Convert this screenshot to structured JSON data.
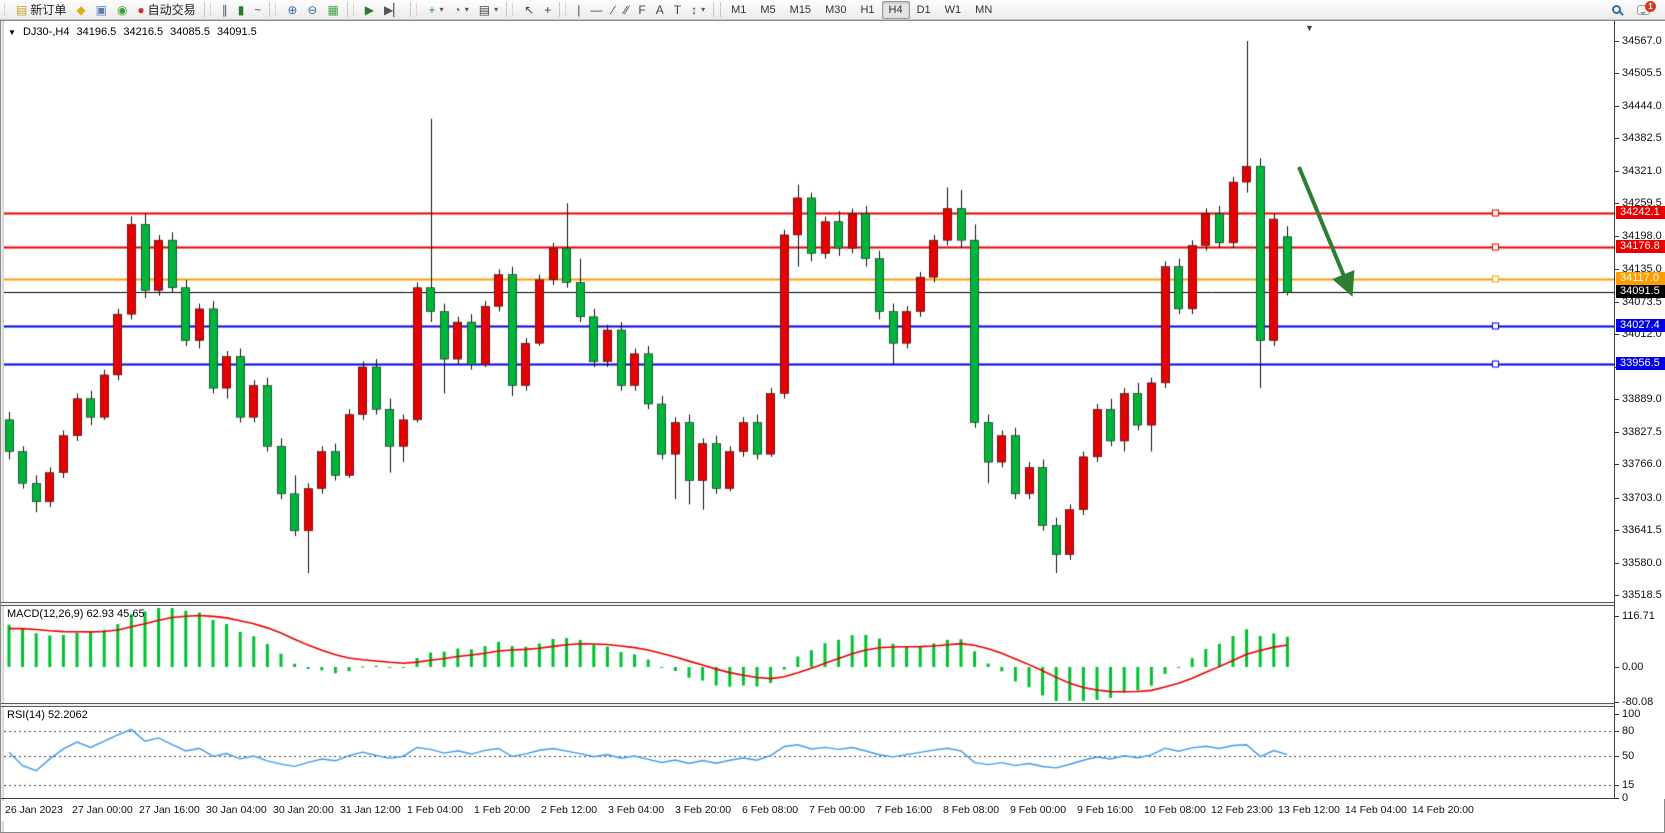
{
  "icons": {
    "new-order": "▤",
    "new-chart": "◆",
    "profiles": "▣",
    "signals": "◉",
    "auto-trading": "●",
    "bar-chart": "∥",
    "candlestick-chart": "▮",
    "line-chart": "~",
    "zoom-in": "⊕",
    "zoom-out": "⊖",
    "tile-windows": "▦",
    "auto-scroll": "▶",
    "chart-shift": "▶▏",
    "indicators": "+",
    "periods": "◔",
    "templates": "▤",
    "cursor": "↖",
    "crosshair": "+",
    "vertical-line": "|",
    "horizontal-line": "—",
    "trendline": "∕",
    "equidistant-channel": "∕∕",
    "fibonacci": "F",
    "text": "A",
    "text-label": "T",
    "arrows": "↕",
    "dropdown": "▾",
    "chart_caret": "▼",
    "shift_marker": "▼"
  },
  "toolbar": {
    "new_order_label": "新订单",
    "auto_trading_label": "自动交易",
    "notification_count": "1",
    "groups": [
      {
        "items": [
          {
            "name": "new-order",
            "icon": "new-order",
            "label": "新订单"
          },
          {
            "name": "new-chart",
            "icon": "new-chart"
          },
          {
            "name": "profiles",
            "icon": "profiles"
          },
          {
            "name": "signals",
            "icon": "signals"
          },
          {
            "name": "auto-trading",
            "icon": "auto-trading",
            "label": "自动交易"
          }
        ]
      },
      {
        "items": [
          {
            "name": "bar-chart",
            "icon": "bar-chart"
          },
          {
            "name": "candlestick-chart",
            "icon": "candlestick-chart"
          },
          {
            "name": "line-chart",
            "icon": "line-chart"
          }
        ]
      },
      {
        "items": [
          {
            "name": "zoom-in",
            "icon": "zoom-in"
          },
          {
            "name": "zoom-out",
            "icon": "zoom-out"
          },
          {
            "name": "tile-windows",
            "icon": "tile-windows"
          }
        ]
      },
      {
        "items": [
          {
            "name": "auto-scroll",
            "icon": "auto-scroll"
          },
          {
            "name": "chart-shift",
            "icon": "chart-shift"
          }
        ]
      },
      {
        "items": [
          {
            "name": "indicators",
            "icon": "indicators",
            "dropdown": true
          },
          {
            "name": "periods",
            "icon": "periods",
            "dropdown": true
          },
          {
            "name": "templates",
            "icon": "templates",
            "dropdown": true
          }
        ]
      },
      {
        "items": [
          {
            "name": "cursor",
            "icon": "cursor"
          },
          {
            "name": "crosshair",
            "icon": "crosshair"
          }
        ]
      },
      {
        "items": [
          {
            "name": "vertical-line",
            "icon": "vertical-line"
          },
          {
            "name": "horizontal-line",
            "icon": "horizontal-line"
          },
          {
            "name": "trendline",
            "icon": "trendline"
          },
          {
            "name": "equidistant-channel",
            "icon": "equidistant-channel"
          },
          {
            "name": "fibonacci",
            "icon": "fibonacci"
          },
          {
            "name": "text",
            "icon": "text"
          },
          {
            "name": "text-label",
            "icon": "text-label"
          },
          {
            "name": "arrows",
            "icon": "arrows",
            "dropdown": true
          }
        ]
      }
    ],
    "timeframes": [
      "M1",
      "M5",
      "M15",
      "M30",
      "H1",
      "H4",
      "D1",
      "W1",
      "MN"
    ],
    "active_timeframe": "H4"
  },
  "chart": {
    "symbol_period": "DJ30-,H4",
    "open": "34196.5",
    "high": "34216.5",
    "low": "34085.5",
    "close": "34091.5"
  },
  "price_axis": {
    "ticks": [
      "34567.0",
      "34505.5",
      "34444.0",
      "34382.5",
      "34321.0",
      "34259.5",
      "34198.0",
      "34135.0",
      "34073.5",
      "34012.0",
      "33950.5",
      "33889.0",
      "33827.5",
      "33766.0",
      "33703.0",
      "33641.5",
      "33580.0",
      "33518.5"
    ]
  },
  "hlines": [
    {
      "price": 34242.1,
      "label": "34242.1",
      "color": "#e80000",
      "width": 2
    },
    {
      "price": 34176.8,
      "label": "34176.8",
      "color": "#e80000",
      "width": 2
    },
    {
      "price": 34117.0,
      "label": "34117.0",
      "color": "#ff9c00",
      "width": 2
    },
    {
      "price": 34027.4,
      "label": "34027.4",
      "color": "#0000e0",
      "width": 2
    },
    {
      "price": 33956.5,
      "label": "33956.5",
      "color": "#0000e0",
      "width": 2
    }
  ],
  "current_price_line": {
    "price": 34091.5,
    "label": "34091.5",
    "color": "#000000"
  },
  "macd": {
    "label": "MACD(12,26,9) 62.93 45.65",
    "params": [
      12,
      26,
      9
    ],
    "value_main": 62.93,
    "value_signal": 45.65,
    "axis": [
      {
        "v": 116.71,
        "label": "116.71"
      },
      {
        "v": 0,
        "label": "0.00"
      },
      {
        "v": -80.08,
        "label": "-80.08"
      }
    ],
    "histogram_color": "#00c030",
    "signal_color": "#e80000"
  },
  "rsi": {
    "label": "RSI(14) 52.2062",
    "period": 14,
    "value": 52.2062,
    "levels": [
      {
        "v": 100,
        "label": "100",
        "dashed": false
      },
      {
        "v": 80,
        "label": "80",
        "dashed": true
      },
      {
        "v": 50,
        "label": "50",
        "dashed": true
      },
      {
        "v": 15,
        "label": "15",
        "dashed": true
      },
      {
        "v": 0,
        "label": "0",
        "dashed": false
      }
    ],
    "color": "#3e9bea"
  },
  "time_axis": [
    "26 Jan 2023",
    "27 Jan 00:00",
    "27 Jan 16:00",
    "30 Jan 04:00",
    "30 Jan 20:00",
    "31 Jan 12:00",
    "1 Feb 04:00",
    "1 Feb 20:00",
    "2 Feb 12:00",
    "3 Feb 04:00",
    "3 Feb 20:00",
    "6 Feb 08:00",
    "7 Feb 00:00",
    "7 Feb 16:00",
    "8 Feb 08:00",
    "9 Feb 00:00",
    "9 Feb 16:00",
    "10 Feb 08:00",
    "12 Feb 23:00",
    "13 Feb 12:00",
    "14 Feb 04:00",
    "14 Feb 20:00"
  ],
  "chart_data": {
    "type": "candlestick",
    "symbol": "DJ30-",
    "timeframe": "H4",
    "price_range_visible": [
      33518.5,
      34567.0
    ],
    "bull_color": "#e60000",
    "bear_color": "#00b43c",
    "wick_color": "#111111",
    "color_convention": "chinese-red-up-green-down",
    "candles_ohlc": [
      [
        33850,
        33865,
        33775,
        33790
      ],
      [
        33790,
        33800,
        33720,
        33730
      ],
      [
        33730,
        33745,
        33675,
        33695
      ],
      [
        33695,
        33760,
        33685,
        33750
      ],
      [
        33750,
        33830,
        33740,
        33820
      ],
      [
        33820,
        33900,
        33810,
        33890
      ],
      [
        33890,
        33905,
        33840,
        33855
      ],
      [
        33855,
        33945,
        33850,
        33935
      ],
      [
        33935,
        34060,
        33925,
        34050
      ],
      [
        34050,
        34235,
        34040,
        34220
      ],
      [
        34220,
        34240,
        34080,
        34095
      ],
      [
        34095,
        34200,
        34085,
        34190
      ],
      [
        34190,
        34205,
        34090,
        34100
      ],
      [
        34100,
        34115,
        33990,
        34000
      ],
      [
        34000,
        34070,
        33985,
        34060
      ],
      [
        34060,
        34075,
        33900,
        33910
      ],
      [
        33910,
        33980,
        33890,
        33970
      ],
      [
        33970,
        33985,
        33845,
        33855
      ],
      [
        33855,
        33925,
        33845,
        33915
      ],
      [
        33915,
        33930,
        33790,
        33800
      ],
      [
        33800,
        33815,
        33700,
        33710
      ],
      [
        33710,
        33745,
        33630,
        33640
      ],
      [
        33640,
        33730,
        33560,
        33720
      ],
      [
        33720,
        33800,
        33710,
        33790
      ],
      [
        33790,
        33805,
        33735,
        33745
      ],
      [
        33745,
        33870,
        33740,
        33860
      ],
      [
        33860,
        33960,
        33850,
        33950
      ],
      [
        33950,
        33965,
        33860,
        33870
      ],
      [
        33870,
        33890,
        33750,
        33800
      ],
      [
        33800,
        33860,
        33770,
        33850
      ],
      [
        33850,
        34110,
        33845,
        34100
      ],
      [
        34100,
        34420,
        34035,
        34055
      ],
      [
        34055,
        34070,
        33900,
        33965
      ],
      [
        33965,
        34045,
        33955,
        34035
      ],
      [
        34035,
        34050,
        33945,
        33955
      ],
      [
        33955,
        34075,
        33950,
        34065
      ],
      [
        34065,
        34135,
        34055,
        34125
      ],
      [
        34125,
        34140,
        33895,
        33915
      ],
      [
        33915,
        34005,
        33905,
        33995
      ],
      [
        33995,
        34125,
        33990,
        34115
      ],
      [
        34115,
        34185,
        34105,
        34175
      ],
      [
        34175,
        34260,
        34100,
        34110
      ],
      [
        34110,
        34155,
        34035,
        34045
      ],
      [
        34045,
        34060,
        33950,
        33960
      ],
      [
        33960,
        34030,
        33950,
        34020
      ],
      [
        34020,
        34035,
        33905,
        33915
      ],
      [
        33915,
        33985,
        33905,
        33975
      ],
      [
        33975,
        33990,
        33870,
        33880
      ],
      [
        33880,
        33895,
        33775,
        33785
      ],
      [
        33785,
        33855,
        33700,
        33845
      ],
      [
        33845,
        33860,
        33690,
        33735
      ],
      [
        33735,
        33815,
        33680,
        33805
      ],
      [
        33805,
        33820,
        33710,
        33720
      ],
      [
        33720,
        33800,
        33715,
        33790
      ],
      [
        33790,
        33855,
        33780,
        33845
      ],
      [
        33845,
        33860,
        33775,
        33785
      ],
      [
        33785,
        33910,
        33780,
        33900
      ],
      [
        33900,
        34210,
        33890,
        34200
      ],
      [
        34200,
        34295,
        34140,
        34270
      ],
      [
        34270,
        34280,
        34150,
        34165
      ],
      [
        34165,
        34235,
        34155,
        34225
      ],
      [
        34225,
        34245,
        34160,
        34175
      ],
      [
        34175,
        34250,
        34165,
        34240
      ],
      [
        34240,
        34255,
        34140,
        34155
      ],
      [
        34155,
        34170,
        34040,
        34055
      ],
      [
        34055,
        34070,
        33955,
        33995
      ],
      [
        33995,
        34065,
        33985,
        34055
      ],
      [
        34055,
        34130,
        34045,
        34120
      ],
      [
        34120,
        34200,
        34110,
        34190
      ],
      [
        34190,
        34290,
        34180,
        34250
      ],
      [
        34250,
        34285,
        34175,
        34190
      ],
      [
        34190,
        34220,
        33835,
        33845
      ],
      [
        33845,
        33860,
        33730,
        33770
      ],
      [
        33770,
        33830,
        33760,
        33820
      ],
      [
        33820,
        33835,
        33700,
        33710
      ],
      [
        33710,
        33770,
        33700,
        33760
      ],
      [
        33760,
        33775,
        33640,
        33650
      ],
      [
        33650,
        33665,
        33560,
        33595
      ],
      [
        33595,
        33690,
        33585,
        33680
      ],
      [
        33680,
        33790,
        33670,
        33780
      ],
      [
        33780,
        33880,
        33770,
        33870
      ],
      [
        33870,
        33890,
        33800,
        33810
      ],
      [
        33810,
        33910,
        33790,
        33900
      ],
      [
        33900,
        33920,
        33830,
        33840
      ],
      [
        33840,
        33930,
        33790,
        33920
      ],
      [
        33920,
        34150,
        33910,
        34140
      ],
      [
        34140,
        34155,
        34050,
        34060
      ],
      [
        34060,
        34190,
        34050,
        34180
      ],
      [
        34180,
        34250,
        34170,
        34240
      ],
      [
        34240,
        34255,
        34175,
        34185
      ],
      [
        34185,
        34310,
        34175,
        34300
      ],
      [
        34300,
        34567,
        34280,
        34330
      ],
      [
        34330,
        34345,
        33910,
        34000
      ],
      [
        34000,
        34240,
        33990,
        34230
      ],
      [
        34196.5,
        34216.5,
        34085.5,
        34091.5
      ]
    ],
    "annotation_arrow": {
      "description": "dark green arrow pointing down-right to the 34117.0 orange level",
      "color": "#2e7d32"
    }
  }
}
